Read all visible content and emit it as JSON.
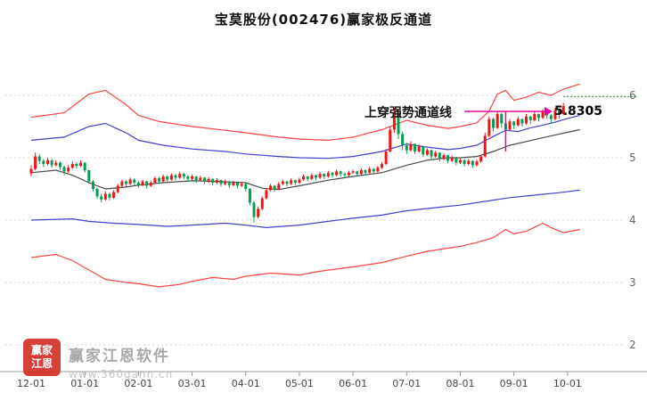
{
  "page": {
    "title": "宝莫股份(002476)赢家极反通道"
  },
  "annotation": {
    "label": "上穿强势通道线",
    "price": "5.8305"
  },
  "watermark": {
    "logo_line1": "赢家",
    "logo_line2": "江恩",
    "brand": "赢家江恩软件",
    "url": "www.360gann.cn"
  },
  "chart_data": {
    "type": "candlestick",
    "title": "宝莫股份(002476)赢家极反通道",
    "stock": {
      "name": "宝莫股份",
      "code": "002476"
    },
    "indicator": "赢家极反通道",
    "x_labels": [
      "12-01",
      "01-01",
      "02-01",
      "03-01",
      "04-01",
      "05-01",
      "06-01",
      "07-01",
      "08-01",
      "09-01",
      "10-01"
    ],
    "y_ticks": [
      6,
      5,
      4,
      3,
      2
    ],
    "y_range": [
      1.6,
      6.9
    ],
    "last_price": 5.8305,
    "dotted_level": 5.98,
    "cross_index": 115,
    "candles_per_month": 13,
    "candles": [
      [
        4.75,
        4.88,
        4.7,
        4.82
      ],
      [
        4.82,
        5.08,
        4.8,
        5.02
      ],
      [
        5.02,
        5.06,
        4.9,
        4.95
      ],
      [
        4.95,
        4.98,
        4.85,
        4.9
      ],
      [
        4.9,
        5.0,
        4.88,
        4.96
      ],
      [
        4.96,
        4.98,
        4.84,
        4.88
      ],
      [
        4.88,
        4.96,
        4.86,
        4.92
      ],
      [
        4.92,
        4.94,
        4.8,
        4.85
      ],
      [
        4.85,
        4.87,
        4.72,
        4.78
      ],
      [
        4.78,
        4.88,
        4.76,
        4.84
      ],
      [
        4.84,
        4.94,
        4.82,
        4.9
      ],
      [
        4.9,
        4.93,
        4.83,
        4.87
      ],
      [
        4.87,
        4.96,
        4.85,
        4.92
      ],
      [
        4.92,
        4.93,
        4.76,
        4.8
      ],
      [
        4.8,
        4.81,
        4.58,
        4.62
      ],
      [
        4.62,
        4.64,
        4.46,
        4.5
      ],
      [
        4.5,
        4.52,
        4.34,
        4.38
      ],
      [
        4.38,
        4.42,
        4.28,
        4.33
      ],
      [
        4.33,
        4.46,
        4.31,
        4.42
      ],
      [
        4.42,
        4.44,
        4.32,
        4.36
      ],
      [
        4.36,
        4.48,
        4.34,
        4.45
      ],
      [
        4.45,
        4.58,
        4.43,
        4.55
      ],
      [
        4.55,
        4.65,
        4.53,
        4.62
      ],
      [
        4.62,
        4.64,
        4.54,
        4.58
      ],
      [
        4.58,
        4.68,
        4.56,
        4.65
      ],
      [
        4.65,
        4.67,
        4.56,
        4.6
      ],
      [
        4.6,
        4.62,
        4.52,
        4.56
      ],
      [
        4.56,
        4.65,
        4.54,
        4.62
      ],
      [
        4.62,
        4.63,
        4.51,
        4.55
      ],
      [
        4.55,
        4.63,
        4.53,
        4.6
      ],
      [
        4.6,
        4.7,
        4.58,
        4.67
      ],
      [
        4.67,
        4.69,
        4.58,
        4.62
      ],
      [
        4.62,
        4.73,
        4.6,
        4.7
      ],
      [
        4.7,
        4.72,
        4.61,
        4.65
      ],
      [
        4.65,
        4.75,
        4.63,
        4.72
      ],
      [
        4.72,
        4.74,
        4.64,
        4.68
      ],
      [
        4.68,
        4.77,
        4.66,
        4.74
      ],
      [
        4.74,
        4.76,
        4.66,
        4.7
      ],
      [
        4.7,
        4.72,
        4.62,
        4.66
      ],
      [
        4.66,
        4.73,
        4.64,
        4.7
      ],
      [
        4.7,
        4.71,
        4.6,
        4.64
      ],
      [
        4.64,
        4.71,
        4.62,
        4.68
      ],
      [
        4.68,
        4.69,
        4.58,
        4.62
      ],
      [
        4.62,
        4.69,
        4.6,
        4.66
      ],
      [
        4.66,
        4.67,
        4.56,
        4.6
      ],
      [
        4.6,
        4.67,
        4.58,
        4.64
      ],
      [
        4.64,
        4.65,
        4.54,
        4.58
      ],
      [
        4.58,
        4.65,
        4.56,
        4.62
      ],
      [
        4.62,
        4.63,
        4.52,
        4.56
      ],
      [
        4.56,
        4.63,
        4.54,
        4.6
      ],
      [
        4.6,
        4.61,
        4.51,
        4.55
      ],
      [
        4.55,
        4.61,
        4.53,
        4.58
      ],
      [
        4.58,
        4.59,
        4.46,
        4.5
      ],
      [
        4.5,
        4.51,
        4.24,
        4.28
      ],
      [
        4.28,
        4.3,
        3.96,
        4.05
      ],
      [
        4.05,
        4.22,
        4.03,
        4.18
      ],
      [
        4.18,
        4.38,
        4.16,
        4.35
      ],
      [
        4.35,
        4.51,
        4.33,
        4.48
      ],
      [
        4.48,
        4.58,
        4.46,
        4.55
      ],
      [
        4.55,
        4.56,
        4.46,
        4.5
      ],
      [
        4.5,
        4.61,
        4.48,
        4.58
      ],
      [
        4.58,
        4.65,
        4.56,
        4.62
      ],
      [
        4.62,
        4.63,
        4.54,
        4.58
      ],
      [
        4.58,
        4.67,
        4.56,
        4.64
      ],
      [
        4.64,
        4.65,
        4.56,
        4.6
      ],
      [
        4.6,
        4.68,
        4.58,
        4.65
      ],
      [
        4.65,
        4.73,
        4.63,
        4.7
      ],
      [
        4.7,
        4.71,
        4.62,
        4.66
      ],
      [
        4.66,
        4.75,
        4.64,
        4.72
      ],
      [
        4.72,
        4.73,
        4.64,
        4.68
      ],
      [
        4.68,
        4.77,
        4.66,
        4.74
      ],
      [
        4.74,
        4.75,
        4.66,
        4.7
      ],
      [
        4.7,
        4.79,
        4.68,
        4.76
      ],
      [
        4.76,
        4.77,
        4.68,
        4.72
      ],
      [
        4.72,
        4.81,
        4.7,
        4.78
      ],
      [
        4.78,
        4.79,
        4.7,
        4.74
      ],
      [
        4.74,
        4.76,
        4.68,
        4.72
      ],
      [
        4.72,
        4.79,
        4.7,
        4.76
      ],
      [
        4.76,
        4.81,
        4.74,
        4.78
      ],
      [
        4.78,
        4.79,
        4.7,
        4.74
      ],
      [
        4.74,
        4.83,
        4.72,
        4.8
      ],
      [
        4.8,
        4.81,
        4.72,
        4.76
      ],
      [
        4.76,
        4.85,
        4.74,
        4.82
      ],
      [
        4.82,
        4.83,
        4.74,
        4.78
      ],
      [
        4.78,
        4.87,
        4.76,
        4.84
      ],
      [
        4.84,
        4.93,
        4.82,
        4.9
      ],
      [
        4.9,
        5.14,
        4.88,
        5.1
      ],
      [
        5.1,
        5.5,
        5.08,
        5.45
      ],
      [
        5.45,
        5.8,
        5.4,
        5.72
      ],
      [
        5.72,
        5.75,
        5.3,
        5.38
      ],
      [
        5.38,
        5.42,
        5.12,
        5.2
      ],
      [
        5.2,
        5.24,
        5.06,
        5.12
      ],
      [
        5.12,
        5.26,
        5.1,
        5.22
      ],
      [
        5.22,
        5.23,
        5.06,
        5.1
      ],
      [
        5.1,
        5.21,
        5.08,
        5.18
      ],
      [
        5.18,
        5.19,
        5.01,
        5.05
      ],
      [
        5.05,
        5.15,
        5.03,
        5.12
      ],
      [
        5.12,
        5.13,
        4.98,
        5.02
      ],
      [
        5.02,
        5.11,
        5.0,
        5.08
      ],
      [
        5.08,
        5.09,
        4.94,
        4.98
      ],
      [
        4.98,
        5.07,
        4.96,
        5.04
      ],
      [
        5.04,
        5.05,
        4.91,
        4.95
      ],
      [
        4.95,
        5.03,
        4.93,
        5.0
      ],
      [
        5.0,
        5.01,
        4.88,
        4.92
      ],
      [
        4.92,
        4.99,
        4.9,
        4.96
      ],
      [
        4.96,
        4.97,
        4.86,
        4.9
      ],
      [
        4.9,
        4.98,
        4.88,
        4.95
      ],
      [
        4.95,
        4.96,
        4.84,
        4.88
      ],
      [
        4.88,
        4.97,
        4.86,
        4.94
      ],
      [
        4.94,
        5.05,
        4.92,
        5.02
      ],
      [
        5.02,
        5.4,
        5.0,
        5.35
      ],
      [
        5.35,
        5.66,
        5.33,
        5.62
      ],
      [
        5.62,
        5.64,
        5.42,
        5.48
      ],
      [
        5.48,
        5.75,
        5.46,
        5.7
      ],
      [
        5.7,
        5.72,
        5.48,
        5.55
      ],
      [
        5.55,
        5.57,
        5.38,
        5.45
      ],
      [
        5.45,
        5.62,
        5.43,
        5.58
      ],
      [
        5.58,
        5.59,
        5.46,
        5.52
      ],
      [
        5.52,
        5.66,
        5.5,
        5.62
      ],
      [
        5.62,
        5.63,
        5.5,
        5.55
      ],
      [
        5.55,
        5.7,
        5.53,
        5.66
      ],
      [
        5.66,
        5.67,
        5.54,
        5.6
      ],
      [
        5.6,
        5.74,
        5.58,
        5.7
      ],
      [
        5.7,
        5.71,
        5.58,
        5.64
      ],
      [
        5.64,
        5.78,
        5.62,
        5.74
      ],
      [
        5.74,
        5.76,
        5.62,
        5.68
      ],
      [
        5.68,
        5.7,
        5.55,
        5.62
      ],
      [
        5.62,
        5.8,
        5.6,
        5.76
      ],
      [
        5.76,
        5.77,
        5.62,
        5.7
      ],
      [
        5.7,
        5.88,
        5.68,
        5.83
      ]
    ],
    "channels": {
      "upper_red": {
        "color": "#ff4242",
        "points": [
          [
            0,
            5.65
          ],
          [
            8,
            5.72
          ],
          [
            14,
            6.02
          ],
          [
            18,
            6.08
          ],
          [
            23,
            5.85
          ],
          [
            26,
            5.68
          ],
          [
            31,
            5.58
          ],
          [
            39,
            5.5
          ],
          [
            47,
            5.44
          ],
          [
            52,
            5.4
          ],
          [
            60,
            5.33
          ],
          [
            65,
            5.3
          ],
          [
            72,
            5.28
          ],
          [
            78,
            5.33
          ],
          [
            85,
            5.45
          ],
          [
            91,
            5.6
          ],
          [
            96,
            5.52
          ],
          [
            101,
            5.47
          ],
          [
            104,
            5.5
          ],
          [
            108,
            5.56
          ],
          [
            111,
            5.75
          ],
          [
            113,
            6.02
          ],
          [
            115,
            6.08
          ],
          [
            117,
            5.92
          ],
          [
            120,
            5.97
          ],
          [
            123,
            6.05
          ],
          [
            126,
            6.0
          ],
          [
            129,
            6.1
          ],
          [
            133,
            6.18
          ]
        ]
      },
      "upper_blue": {
        "color": "#4040cc",
        "points": [
          [
            0,
            5.28
          ],
          [
            8,
            5.33
          ],
          [
            14,
            5.5
          ],
          [
            18,
            5.55
          ],
          [
            23,
            5.4
          ],
          [
            26,
            5.28
          ],
          [
            32,
            5.2
          ],
          [
            39,
            5.14
          ],
          [
            47,
            5.1
          ],
          [
            52,
            5.06
          ],
          [
            60,
            5.02
          ],
          [
            65,
            5.0
          ],
          [
            72,
            4.99
          ],
          [
            78,
            5.02
          ],
          [
            85,
            5.1
          ],
          [
            91,
            5.22
          ],
          [
            96,
            5.17
          ],
          [
            101,
            5.13
          ],
          [
            104,
            5.15
          ],
          [
            108,
            5.2
          ],
          [
            112,
            5.34
          ],
          [
            115,
            5.44
          ],
          [
            118,
            5.42
          ],
          [
            121,
            5.48
          ],
          [
            124,
            5.52
          ],
          [
            127,
            5.57
          ],
          [
            130,
            5.63
          ],
          [
            133,
            5.68
          ]
        ]
      },
      "middle": {
        "color": "#4a4a4a",
        "points": [
          [
            0,
            4.76
          ],
          [
            6,
            4.8
          ],
          [
            10,
            4.72
          ],
          [
            14,
            4.6
          ],
          [
            18,
            4.5
          ],
          [
            23,
            4.53
          ],
          [
            26,
            4.56
          ],
          [
            32,
            4.6
          ],
          [
            39,
            4.63
          ],
          [
            45,
            4.62
          ],
          [
            52,
            4.6
          ],
          [
            56,
            4.51
          ],
          [
            60,
            4.49
          ],
          [
            65,
            4.55
          ],
          [
            72,
            4.64
          ],
          [
            78,
            4.7
          ],
          [
            85,
            4.76
          ],
          [
            91,
            4.88
          ],
          [
            96,
            4.96
          ],
          [
            101,
            5.0
          ],
          [
            104,
            5.0
          ],
          [
            108,
            5.02
          ],
          [
            112,
            5.1
          ],
          [
            116,
            5.2
          ],
          [
            120,
            5.26
          ],
          [
            124,
            5.32
          ],
          [
            128,
            5.38
          ],
          [
            133,
            5.45
          ]
        ]
      },
      "lower_blue": {
        "color": "#4040cc",
        "points": [
          [
            0,
            4.0
          ],
          [
            10,
            4.02
          ],
          [
            14,
            3.98
          ],
          [
            20,
            3.95
          ],
          [
            26,
            3.93
          ],
          [
            33,
            3.9
          ],
          [
            39,
            3.92
          ],
          [
            47,
            3.95
          ],
          [
            52,
            3.92
          ],
          [
            57,
            3.88
          ],
          [
            65,
            3.92
          ],
          [
            72,
            3.98
          ],
          [
            78,
            4.03
          ],
          [
            85,
            4.08
          ],
          [
            91,
            4.15
          ],
          [
            98,
            4.2
          ],
          [
            104,
            4.24
          ],
          [
            110,
            4.3
          ],
          [
            116,
            4.36
          ],
          [
            122,
            4.4
          ],
          [
            128,
            4.44
          ],
          [
            133,
            4.48
          ]
        ]
      },
      "lower_red": {
        "color": "#ff4242",
        "points": [
          [
            0,
            3.4
          ],
          [
            6,
            3.45
          ],
          [
            10,
            3.35
          ],
          [
            14,
            3.2
          ],
          [
            18,
            3.05
          ],
          [
            23,
            3.0
          ],
          [
            26,
            2.98
          ],
          [
            31,
            2.93
          ],
          [
            36,
            2.97
          ],
          [
            39,
            3.02
          ],
          [
            44,
            3.08
          ],
          [
            49,
            3.05
          ],
          [
            52,
            3.1
          ],
          [
            58,
            3.15
          ],
          [
            65,
            3.12
          ],
          [
            70,
            3.18
          ],
          [
            78,
            3.25
          ],
          [
            85,
            3.32
          ],
          [
            91,
            3.42
          ],
          [
            96,
            3.5
          ],
          [
            101,
            3.55
          ],
          [
            104,
            3.58
          ],
          [
            108,
            3.64
          ],
          [
            112,
            3.72
          ],
          [
            115,
            3.85
          ],
          [
            117,
            3.78
          ],
          [
            120,
            3.82
          ],
          [
            124,
            3.95
          ],
          [
            126,
            3.88
          ],
          [
            129,
            3.8
          ],
          [
            133,
            3.85
          ]
        ]
      }
    },
    "colors": {
      "up": "#f01414",
      "down": "#00a050",
      "grid": "#d9d9d9",
      "axis": "#9a9a9a",
      "tick_text": "#444444",
      "y_text": "#666666",
      "dotted": "#2e7d32",
      "arrow": "#e800a8"
    }
  }
}
